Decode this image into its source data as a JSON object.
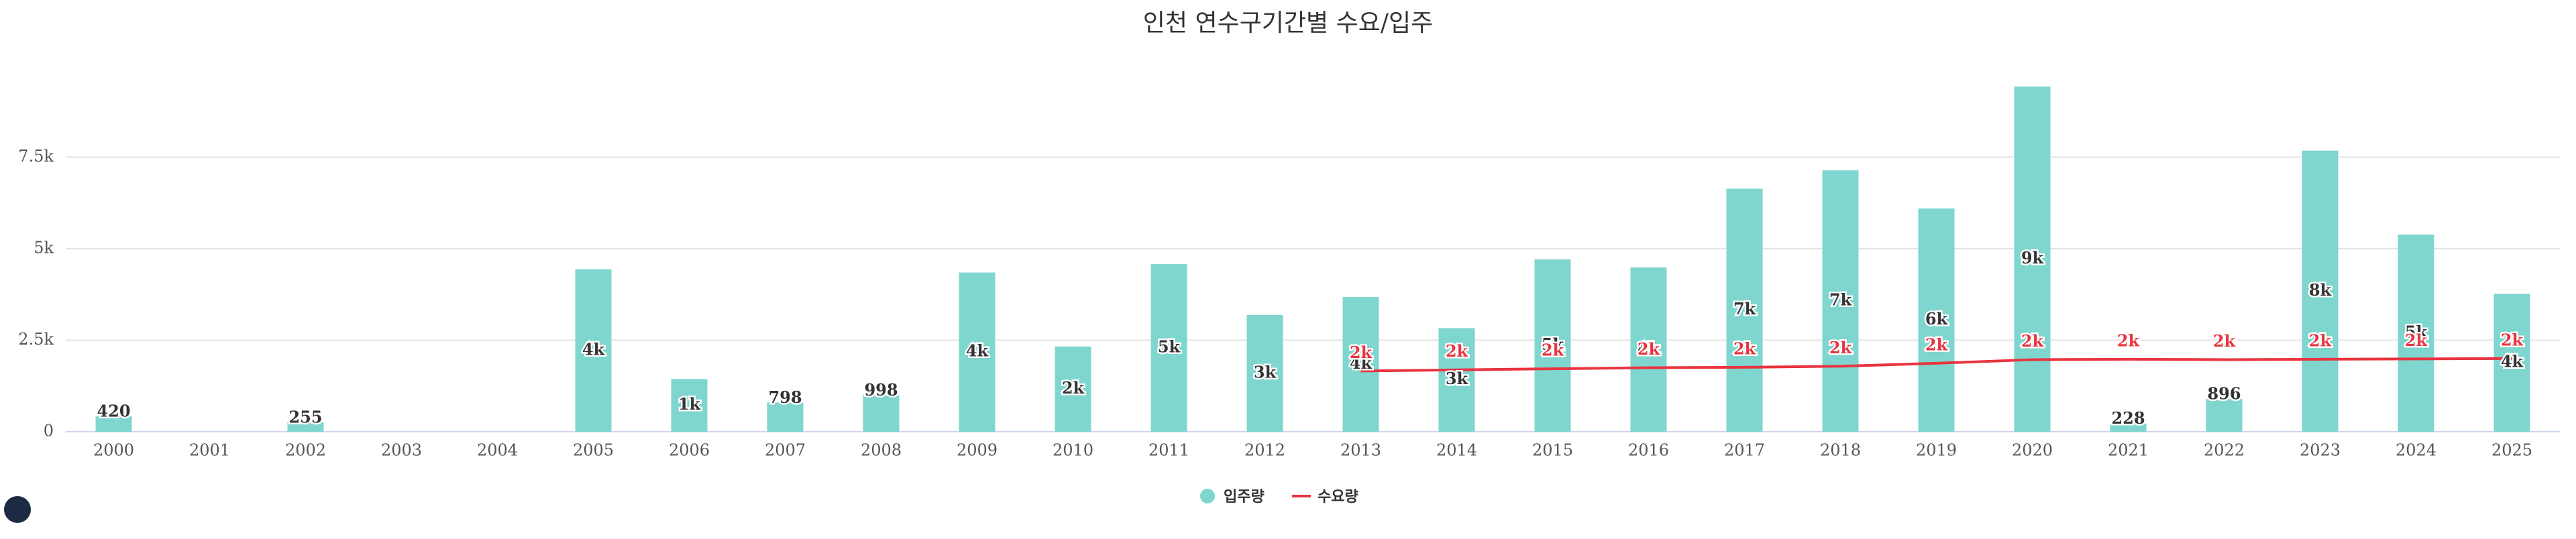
{
  "chart_data": {
    "type": "bar",
    "title": "인천 연수구기간별 수요/입주",
    "categories": [
      "2000",
      "2001",
      "2002",
      "2003",
      "2004",
      "2005",
      "2006",
      "2007",
      "2008",
      "2009",
      "2010",
      "2011",
      "2012",
      "2013",
      "2014",
      "2015",
      "2016",
      "2017",
      "2018",
      "2019",
      "2020",
      "2021",
      "2022",
      "2023",
      "2024",
      "2025"
    ],
    "series": [
      {
        "name": "입주량",
        "type": "bar",
        "color": "#7fd6cf",
        "values": [
          420,
          null,
          255,
          null,
          null,
          4440,
          1440,
          798,
          998,
          4350,
          2330,
          4580,
          3190,
          3680,
          2830,
          4710,
          4490,
          6640,
          7140,
          6100,
          9430,
          228,
          896,
          7680,
          5390,
          3770
        ],
        "value_labels": [
          "420",
          null,
          "255",
          null,
          null,
          "4k",
          "1k",
          "798",
          "998",
          "4k",
          "2k",
          "5k",
          "3k",
          "4k",
          "3k",
          "5k",
          "4k",
          "7k",
          "7k",
          "6k",
          "9k",
          "228",
          "896",
          "8k",
          "5k",
          "4k"
        ]
      },
      {
        "name": "수요량",
        "type": "line",
        "color": "#e8343f",
        "values": [
          null,
          null,
          null,
          null,
          null,
          null,
          null,
          null,
          null,
          null,
          null,
          null,
          null,
          1660,
          1690,
          1720,
          1750,
          1760,
          1790,
          1870,
          1970,
          1980,
          1970,
          1980,
          1990,
          2000
        ],
        "value_labels": [
          null,
          null,
          null,
          null,
          null,
          null,
          null,
          null,
          null,
          null,
          null,
          null,
          null,
          "2k",
          "2k",
          "2k",
          "2k",
          "2k",
          "2k",
          "2k",
          "2k",
          "2k",
          "2k",
          "2k",
          "2k",
          "2k"
        ]
      }
    ],
    "ylim": [
      0,
      10000
    ],
    "yticks": [
      0,
      {
        "value": 2500,
        "label": "2.5k"
      },
      {
        "value": 5000,
        "label": "5k"
      },
      {
        "value": 7500,
        "label": "7.5k"
      }
    ],
    "grid": true,
    "legend": "bottom"
  }
}
